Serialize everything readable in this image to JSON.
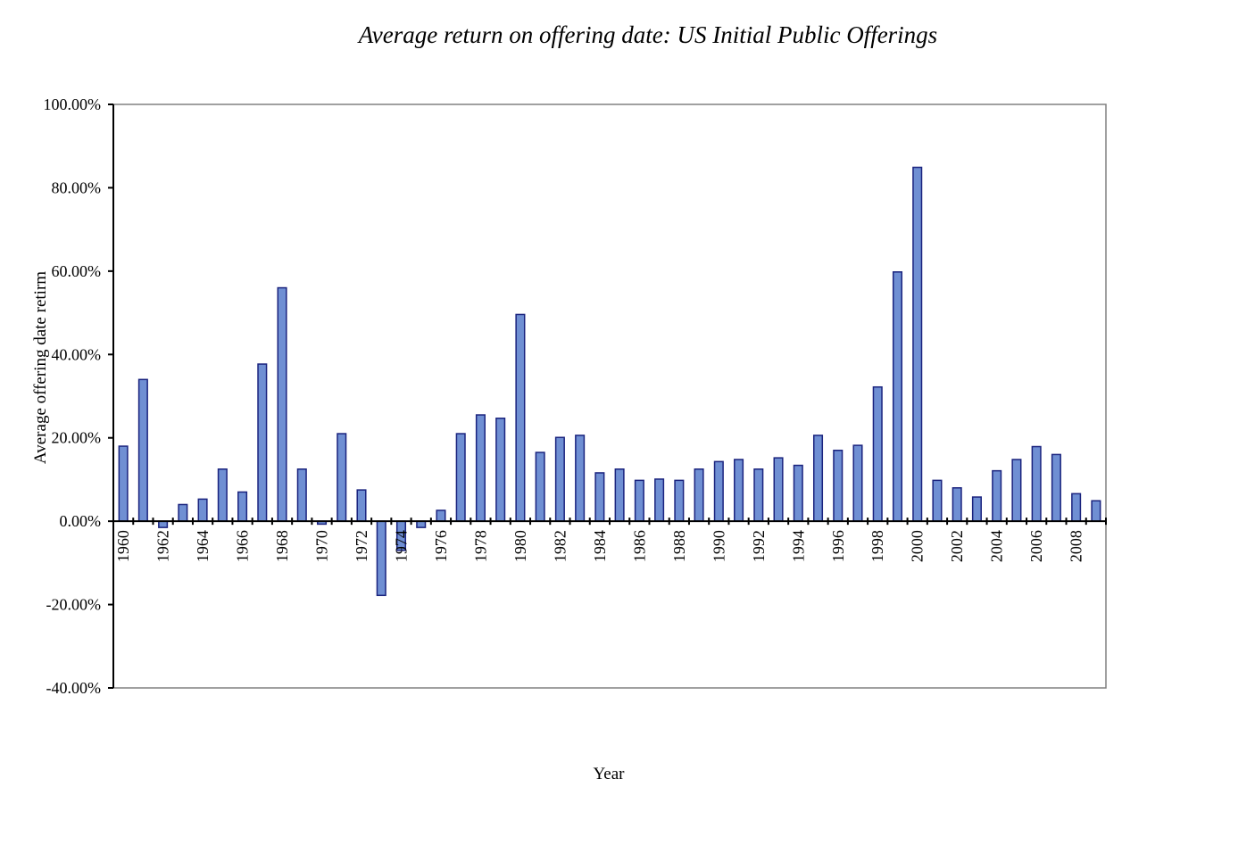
{
  "chart_data": {
    "type": "bar",
    "title": "Average return on offering date: US Initial Public Offerings",
    "xlabel": "Year",
    "ylabel": "Average offering date retirm",
    "ylim": [
      -40,
      100
    ],
    "y_ticks": [
      "100.00%",
      "80.00%",
      "60.00%",
      "40.00%",
      "20.00%",
      "0.00%",
      "-20.00%",
      "-40.00%"
    ],
    "y_tick_values": [
      100,
      80,
      60,
      40,
      20,
      0,
      -20,
      -40
    ],
    "x_tick_labels": [
      "1960",
      "1962",
      "1964",
      "1966",
      "1968",
      "1970",
      "1972",
      "1974",
      "1976",
      "1978",
      "1980",
      "1982",
      "1984",
      "1986",
      "1988",
      "1990",
      "1992",
      "1994",
      "1996",
      "1998",
      "2000",
      "2002",
      "2004",
      "2006",
      "2008"
    ],
    "categories": [
      "1960",
      "1961",
      "1962",
      "1963",
      "1964",
      "1965",
      "1966",
      "1967",
      "1968",
      "1969",
      "1970",
      "1971",
      "1972",
      "1973",
      "1974",
      "1975",
      "1976",
      "1977",
      "1978",
      "1979",
      "1980",
      "1981",
      "1982",
      "1983",
      "1984",
      "1985",
      "1986",
      "1987",
      "1988",
      "1989",
      "1990",
      "1991",
      "1992",
      "1993",
      "1994",
      "1995",
      "1996",
      "1997",
      "1998",
      "1999",
      "2000",
      "2001",
      "2002",
      "2003",
      "2004",
      "2005",
      "2006",
      "2007",
      "2008",
      "2009"
    ],
    "series": [
      {
        "values": [
          18.0,
          34.0,
          -1.5,
          4.0,
          5.3,
          12.5,
          7.0,
          37.7,
          56.0,
          12.5,
          -0.7,
          21.0,
          7.5,
          -17.8,
          -7.0,
          -1.5,
          2.6,
          21.0,
          25.5,
          24.7,
          49.6,
          16.5,
          20.1,
          20.6,
          11.6,
          12.5,
          9.8,
          10.1,
          9.8,
          12.5,
          14.3,
          14.8,
          12.5,
          15.2,
          13.4,
          20.6,
          17.0,
          18.2,
          32.2,
          59.8,
          84.9,
          9.8,
          8.0,
          5.8,
          12.1,
          14.8,
          17.9,
          16.0,
          6.6,
          4.9
        ]
      }
    ],
    "colors": {
      "bar_fill": "#6f8fd3",
      "bar_stroke": "#1a237e",
      "frame": "#808080"
    },
    "grid": false,
    "legend": "none"
  }
}
